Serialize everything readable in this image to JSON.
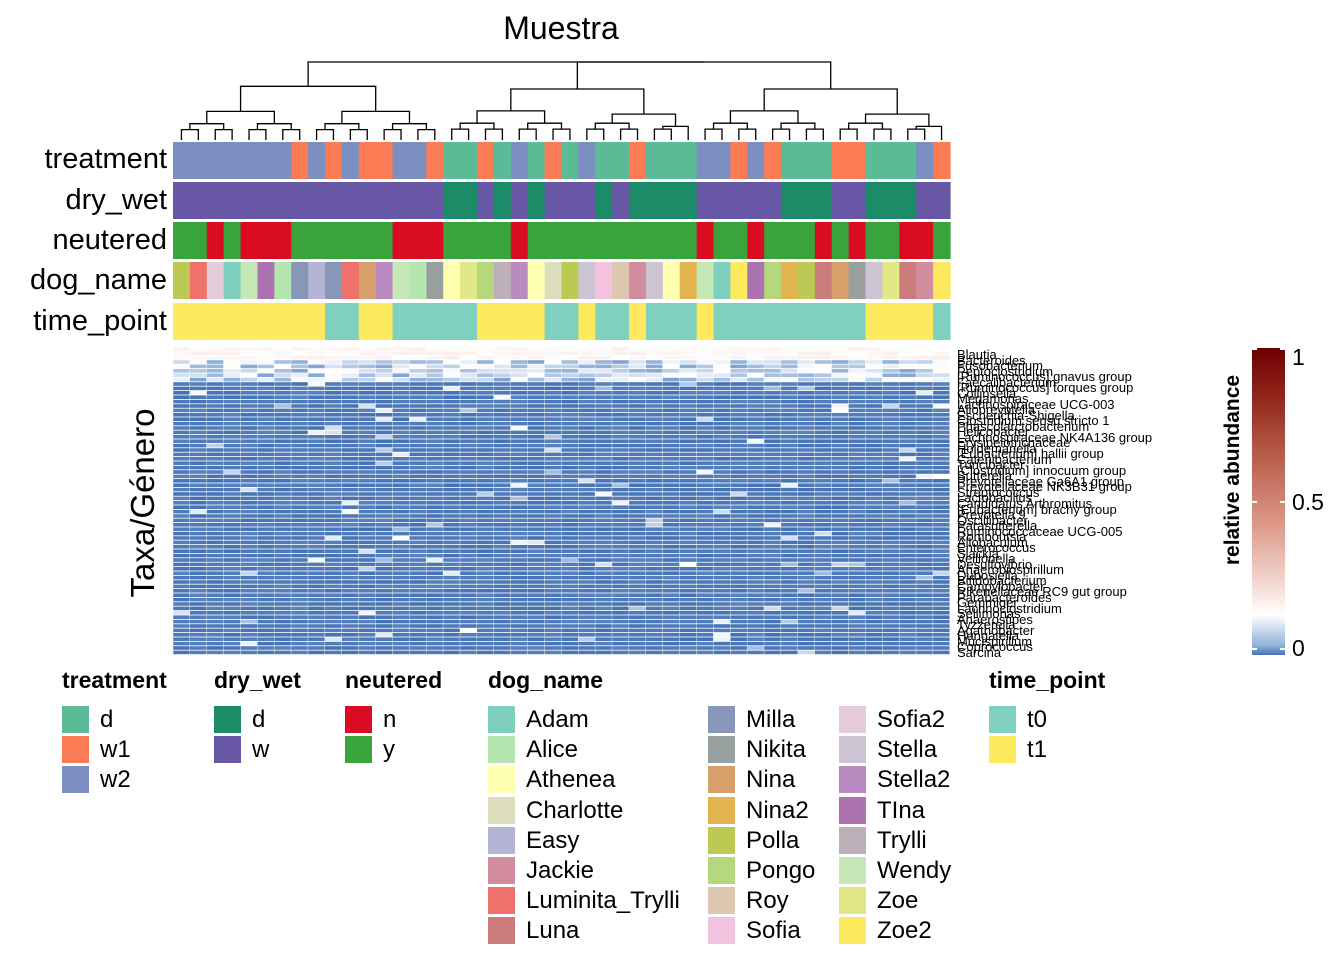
{
  "chart_data": {
    "type": "heatmap",
    "title": "Muestra",
    "ylabel": "Taxa/Género",
    "x_axis_name": "Muestra",
    "annotation_rows": [
      "treatment",
      "dry_wet",
      "neutered",
      "dog_name",
      "time_point"
    ],
    "annotation_values": {
      "treatment": [
        "w2",
        "w2",
        "w2",
        "w2",
        "w2",
        "w2",
        "w2",
        "w1",
        "w2",
        "w1",
        "w2",
        "w1",
        "w1",
        "w2",
        "w2",
        "w1",
        "d",
        "d",
        "w1",
        "d",
        "w2",
        "d",
        "w1",
        "d",
        "w2",
        "d",
        "d",
        "w1",
        "d",
        "d",
        "d",
        "w2",
        "w2",
        "w1",
        "w2",
        "w1",
        "d",
        "d",
        "d",
        "w1",
        "w1",
        "d",
        "d",
        "d",
        "w2",
        "w1"
      ],
      "dry_wet": [
        "w",
        "w",
        "w",
        "w",
        "w",
        "w",
        "w",
        "w",
        "w",
        "w",
        "w",
        "w",
        "w",
        "w",
        "w",
        "w",
        "d",
        "d",
        "w",
        "d",
        "w",
        "d",
        "w",
        "w",
        "w",
        "d",
        "w",
        "d",
        "d",
        "d",
        "d",
        "w",
        "w",
        "w",
        "w",
        "w",
        "d",
        "d",
        "d",
        "w",
        "w",
        "d",
        "d",
        "d",
        "w",
        "w"
      ],
      "neutered": [
        "y",
        "y",
        "n",
        "y",
        "n",
        "n",
        "n",
        "y",
        "y",
        "y",
        "y",
        "y",
        "y",
        "n",
        "n",
        "n",
        "y",
        "y",
        "y",
        "y",
        "n",
        "y",
        "y",
        "y",
        "y",
        "y",
        "y",
        "y",
        "y",
        "y",
        "y",
        "n",
        "y",
        "y",
        "n",
        "y",
        "y",
        "y",
        "n",
        "y",
        "n",
        "y",
        "y",
        "n",
        "n",
        "y"
      ],
      "dog_name": [
        "Polla",
        "Luminita_Trylli",
        "Sofia2",
        "Adam",
        "Wendy",
        "TIna",
        "Alice",
        "Milla",
        "Easy",
        "Milla",
        "Luminita_Trylli",
        "Nina",
        "Stella2",
        "Wendy",
        "Alice",
        "Nikita",
        "Athenea",
        "Zoe",
        "Pongo",
        "Trylli",
        "Stella2",
        "Athenea",
        "Charlotte",
        "Polla",
        "Stella",
        "Sofia",
        "Roy",
        "Jackie",
        "Stella",
        "Athenea",
        "Nina2",
        "Wendy",
        "Adam",
        "Zoe2",
        "TIna",
        "Pongo",
        "Nina2",
        "Polla",
        "Luna",
        "Nina",
        "Nikita",
        "Stella",
        "Zoe",
        "Luna",
        "Jackie",
        "Zoe2"
      ],
      "time_point": [
        "t1",
        "t1",
        "t1",
        "t1",
        "t1",
        "t1",
        "t1",
        "t1",
        "t1",
        "t0",
        "t0",
        "t1",
        "t1",
        "t0",
        "t0",
        "t0",
        "t0",
        "t0",
        "t1",
        "t1",
        "t1",
        "t1",
        "t0",
        "t0",
        "t1",
        "t0",
        "t0",
        "t1",
        "t0",
        "t0",
        "t0",
        "t1",
        "t0",
        "t0",
        "t0",
        "t0",
        "t0",
        "t0",
        "t0",
        "t0",
        "t0",
        "t1",
        "t1",
        "t1",
        "t1",
        "t0"
      ]
    },
    "taxa_labels_visible": [
      "Blautia",
      "Bacteroides",
      "Fusobacterium",
      "Peptoclostridium",
      "[Ruminococcus] gnavus group",
      "Faecalibacterium",
      "[Ruminococcus] torques group",
      "Collinsella",
      "Megamonas",
      "Lachnospiraceae UCG-003",
      "Alloprevotella",
      "Escherichia-Shigella",
      "Clostridium sensu stricto 1",
      "Phascolarctobacterium",
      "Helicobacter",
      "Lachnospiraceae NK4A136 group",
      "Erysipelotrichaceae",
      "Holdemanella",
      "[Eubacterium] hallii group",
      "Catenibacterium",
      "Turicibacter",
      "[Clostridium] innocuum group",
      "Sutterella",
      "Prevotellaceae Ga6A1 group",
      "Prevotellaceae NK3B31 group",
      "Streptococcus",
      "Lactobacillus",
      "Candidatus Arthromitus",
      "[Eubacterium] brachy group",
      "Prevotella 9",
      "Oscillibacter",
      "Parasutterella",
      "Ruminococcaceae UCG-005",
      "Romboutsia",
      "Allobaculum",
      "Enterococcus",
      "Slackia",
      "Veillonella",
      "Desulfovibrio",
      "Anaerobiospirillum",
      "Dubosiella",
      "Bifidobacterium",
      "Campylobacter",
      "Rikenellaceae RC9 gut group",
      "Parabacteroides",
      "Gemmiger",
      "Lachnoclostridium",
      "Sellimonas",
      "Anaerostipes",
      "Tyzzerella",
      "Agathobacter",
      "Hungatella",
      "Mucispirillum",
      "Coprococcus",
      "Sarcina"
    ],
    "colorbar": {
      "title": "relative abundance",
      "ticks": [
        0,
        0.5,
        1
      ],
      "range": [
        0,
        1
      ],
      "colors": [
        "#4472b4",
        "#ffffff",
        "#d99281",
        "#6c0000"
      ]
    }
  },
  "legends": [
    {
      "title": "treatment",
      "items": [
        {
          "label": "d",
          "color": "#5bbb97"
        },
        {
          "label": "w1",
          "color": "#fa7b54"
        },
        {
          "label": "w2",
          "color": "#7b8fc1"
        }
      ]
    },
    {
      "title": "dry_wet",
      "items": [
        {
          "label": "d",
          "color": "#1c8c68"
        },
        {
          "label": "w",
          "color": "#6757a4"
        }
      ]
    },
    {
      "title": "neutered",
      "items": [
        {
          "label": "n",
          "color": "#da0c22"
        },
        {
          "label": "y",
          "color": "#3aa43c"
        }
      ]
    },
    {
      "title": "dog_name",
      "items": [
        {
          "label": "Adam",
          "color": "#7fcfbf"
        },
        {
          "label": "Alice",
          "color": "#b6e6b0"
        },
        {
          "label": "Athenea",
          "color": "#feffaf"
        },
        {
          "label": "Charlotte",
          "color": "#ddddbe"
        },
        {
          "label": "Easy",
          "color": "#b4b4d4"
        },
        {
          "label": "Jackie",
          "color": "#d18c9d"
        },
        {
          "label": "Luminita_Trylli",
          "color": "#ef716c"
        },
        {
          "label": "Luna",
          "color": "#cb7c7a"
        },
        {
          "label": "Milla",
          "color": "#8897b9"
        },
        {
          "label": "Nikita",
          "color": "#97a09e"
        },
        {
          "label": "Nina",
          "color": "#d7a06a"
        },
        {
          "label": "Nina2",
          "color": "#e2b450"
        },
        {
          "label": "Polla",
          "color": "#bcca53"
        },
        {
          "label": "Pongo",
          "color": "#b6d87c"
        },
        {
          "label": "Roy",
          "color": "#dec7b0"
        },
        {
          "label": "Sofia",
          "color": "#f3c2de"
        },
        {
          "label": "Sofia2",
          "color": "#e3cbda"
        },
        {
          "label": "Stella",
          "color": "#cdc4d3"
        },
        {
          "label": "Stella2",
          "color": "#ba8bc1"
        },
        {
          "label": "TIna",
          "color": "#ad72b0"
        },
        {
          "label": "Trylli",
          "color": "#beb0b8"
        },
        {
          "label": "Wendy",
          "color": "#c6e8b6"
        },
        {
          "label": "Zoe",
          "color": "#e2e885"
        },
        {
          "label": "Zoe2",
          "color": "#fde95e"
        }
      ]
    },
    {
      "title": "time_point",
      "items": [
        {
          "label": "t0",
          "color": "#7fd0bf"
        },
        {
          "label": "t1",
          "color": "#feea5c"
        }
      ]
    }
  ],
  "colors": {
    "cold": "#4472b4",
    "mid": "#ffffff",
    "warm": "#d99281",
    "max": "#6c0000"
  }
}
